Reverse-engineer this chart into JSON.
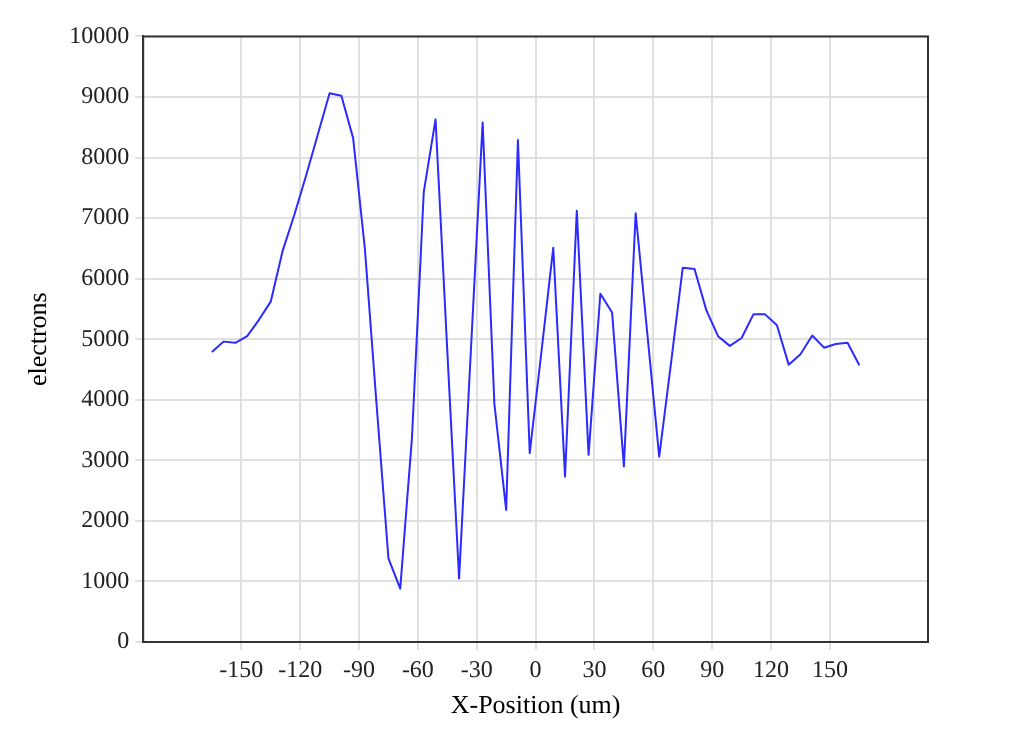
{
  "chart_data": {
    "type": "line",
    "xlabel": "X-Position (um)",
    "ylabel": "electrons",
    "x": [
      -165,
      -159,
      -153,
      -147,
      -141,
      -135,
      -129,
      -123,
      -117,
      -111,
      -105,
      -99,
      -93,
      -87,
      -81,
      -75,
      -69,
      -63,
      -57,
      -51,
      -45,
      -39,
      -33,
      -27,
      -21,
      -15,
      -9,
      -3,
      3,
      9,
      15,
      21,
      27,
      33,
      39,
      45,
      51,
      57,
      63,
      69,
      75,
      81,
      87,
      93,
      99,
      105,
      111,
      117,
      123,
      129,
      135,
      141,
      147,
      153,
      159,
      165
    ],
    "series": [
      {
        "color": "#2b2bff",
        "values": [
          4790,
          4960,
          4940,
          5050,
          5320,
          5620,
          6450,
          7050,
          7700,
          8380,
          9060,
          9020,
          8320,
          6490,
          3900,
          1380,
          880,
          3380,
          7430,
          8630,
          4800,
          1050,
          4800,
          8580,
          3930,
          2180,
          8290,
          3120,
          4800,
          6510,
          2730,
          7120,
          3090,
          5750,
          5440,
          2900,
          7080,
          5070,
          3060,
          4600,
          6180,
          6160,
          5480,
          5050,
          4890,
          5020,
          5410,
          5410,
          5230,
          4580,
          4750,
          5060,
          4860,
          4920,
          4940,
          4570
        ]
      }
    ],
    "xlim": [
      -200,
      200
    ],
    "xticks": [
      -150,
      -120,
      -90,
      -60,
      -30,
      0,
      30,
      60,
      90,
      120,
      150
    ],
    "ylim": [
      0,
      10000
    ],
    "yticks": [
      0,
      1000,
      2000,
      3000,
      4000,
      5000,
      6000,
      7000,
      8000,
      9000,
      10000
    ],
    "grid": true,
    "marker": "none",
    "line_style": "solid",
    "legend": false
  }
}
